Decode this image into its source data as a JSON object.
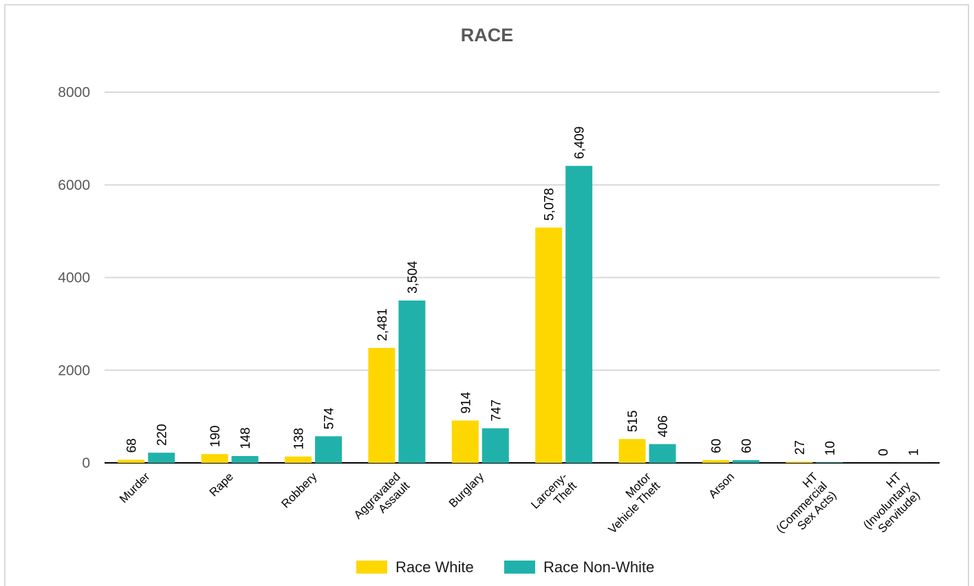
{
  "chart_data": {
    "type": "bar",
    "title": "RACE",
    "xlabel": "",
    "ylabel": "",
    "ylim": [
      0,
      8000
    ],
    "yticks": [
      "0",
      "2000",
      "4000",
      "6000",
      "8000"
    ],
    "grid": true,
    "legend_position": "bottom",
    "categories": [
      [
        "Murder"
      ],
      [
        "Rape"
      ],
      [
        "Robbery"
      ],
      [
        "Aggravated",
        "Assault"
      ],
      [
        "Burglary"
      ],
      [
        "Larceny-",
        "Theft"
      ],
      [
        "Motor",
        "Vehicle Theft"
      ],
      [
        "Arson"
      ],
      [
        "HT",
        "(Commercial",
        "Sex Acts)"
      ],
      [
        "HT",
        "(Involuntary",
        "Servitude)"
      ]
    ],
    "series": [
      {
        "name": "Race White",
        "color": "#ffd700",
        "values": [
          68,
          190,
          138,
          2481,
          914,
          5078,
          515,
          60,
          27,
          0
        ],
        "labels": [
          "68",
          "190",
          "138",
          "2,481",
          "914",
          "5,078",
          "515",
          "60",
          "27",
          "0"
        ]
      },
      {
        "name": "Race Non-White",
        "color": "#20b2aa",
        "values": [
          220,
          148,
          574,
          3504,
          747,
          6409,
          406,
          60,
          10,
          1
        ],
        "labels": [
          "220",
          "148",
          "574",
          "3,504",
          "747",
          "6,409",
          "406",
          "60",
          "10",
          "1"
        ]
      }
    ]
  }
}
